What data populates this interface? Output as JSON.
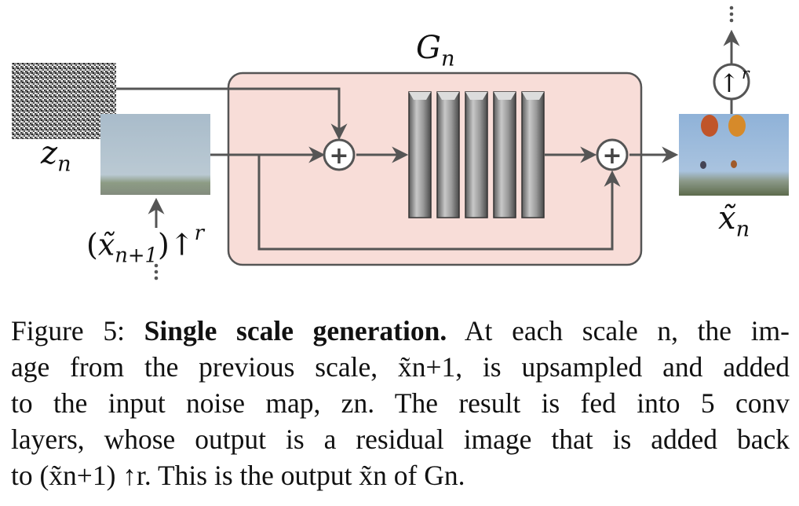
{
  "figure": {
    "generator_label": "G",
    "generator_sub": "n",
    "noise_label": "z",
    "noise_sub": "n",
    "prev_label_open": "(",
    "prev_label_var": "x̃",
    "prev_label_sub": "n+1",
    "prev_label_close": ")↑",
    "prev_label_sup": "r",
    "output_label_var": "x̃",
    "output_label_sub": "n",
    "upsample_symbol": "↑",
    "upsample_sup": "r",
    "plus_symbol": "+",
    "conv_layer_count": 5,
    "colors": {
      "generator_box_fill": "#f8ddd8",
      "arrow": "#555555",
      "conv_layer": "#8a8a8a"
    }
  },
  "caption": {
    "line1_prefix": "Figure 5: ",
    "line1_bold": "Single scale generation.",
    "line1_rest": " At each scale n, the im-",
    "line2": "age from the previous scale, x̃n+1, is upsampled and added",
    "line3": "to the input noise map, zn.  The result is fed into 5 conv",
    "line4": "layers, whose output is a residual image that is added back",
    "line5": "to (x̃n+1) ↑r. This is the output x̃n of Gn."
  }
}
